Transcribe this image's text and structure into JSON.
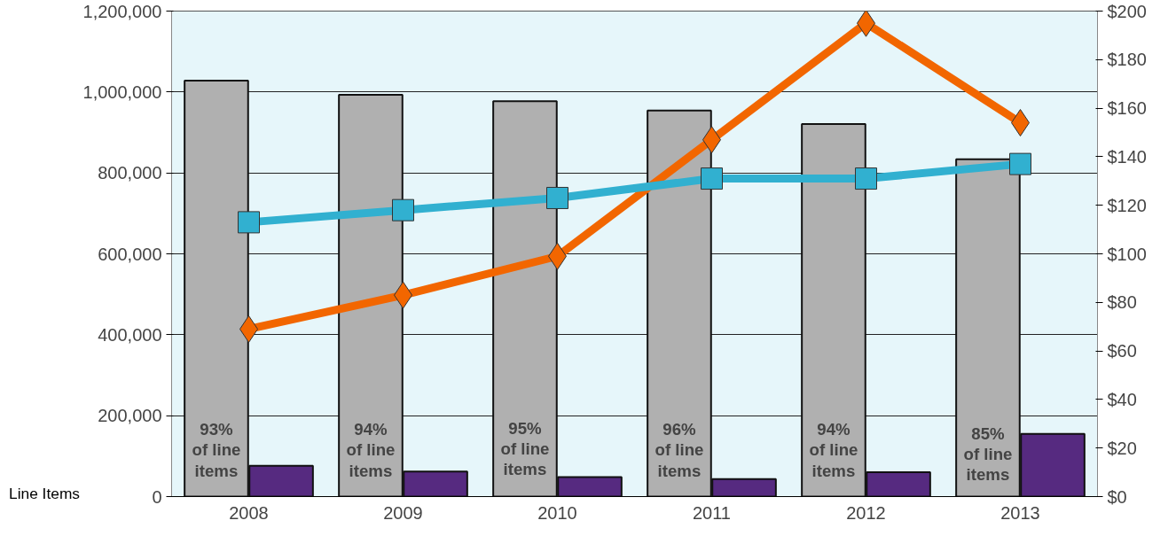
{
  "chart_data": {
    "type": "bar",
    "categories": [
      "2008",
      "2009",
      "2010",
      "2011",
      "2012",
      "2013"
    ],
    "ylabel": "Line Items",
    "series": [
      {
        "color": "#b0b0b0",
        "values": [
          1028000,
          993000,
          977000,
          954000,
          921000,
          834000
        ]
      },
      {
        "color": "#562a80",
        "values": [
          76000,
          62000,
          48000,
          43000,
          60000,
          155000
        ]
      },
      {
        "type": "line",
        "axis": "y2",
        "color": "#f26600",
        "marker": "diamond",
        "values": [
          69,
          83,
          99,
          147,
          195,
          154
        ]
      },
      {
        "type": "line",
        "axis": "y2",
        "color": "#31b0d0",
        "marker": "square",
        "values": [
          113,
          118,
          123,
          131,
          131,
          137
        ]
      }
    ],
    "ylim": [
      0,
      1200000
    ],
    "yticks": [
      {
        "value": 0,
        "label": "0"
      },
      {
        "value": 200000,
        "label": "200,000"
      },
      {
        "value": 400000,
        "label": "400,000"
      },
      {
        "value": 600000,
        "label": "600,000"
      },
      {
        "value": 800000,
        "label": "800,000"
      },
      {
        "value": 1000000,
        "label": "1,000,000"
      },
      {
        "value": 1200000,
        "label": "1,200,000"
      }
    ],
    "y2lim": [
      0,
      200
    ],
    "y2ticks": [
      {
        "value": 0,
        "label": "$0"
      },
      {
        "value": 20,
        "label": "$20"
      },
      {
        "value": 40,
        "label": "$40"
      },
      {
        "value": 60,
        "label": "$60"
      },
      {
        "value": 80,
        "label": "$80"
      },
      {
        "value": 100,
        "label": "$100"
      },
      {
        "value": 120,
        "label": "$120"
      },
      {
        "value": 140,
        "label": "$140"
      },
      {
        "value": 160,
        "label": "$160"
      },
      {
        "value": 180,
        "label": "$180"
      },
      {
        "value": 200,
        "label": "$200"
      }
    ],
    "annotations": [
      {
        "text": "93%\nof line\nitems",
        "x": "2008",
        "y": 115000
      },
      {
        "text": "94%\nof line\nitems",
        "x": "2009",
        "y": 115000
      },
      {
        "text": "95%\nof line\nitems",
        "x": "2010",
        "y": 118000
      },
      {
        "text": "96%\nof line\nitems",
        "x": "2011",
        "y": 115000
      },
      {
        "text": "94%\nof line\nitems",
        "x": "2012",
        "y": 115000
      },
      {
        "text": "85%\nof line\nitems",
        "x": "2013",
        "y": 105000
      }
    ],
    "grid": "y"
  }
}
